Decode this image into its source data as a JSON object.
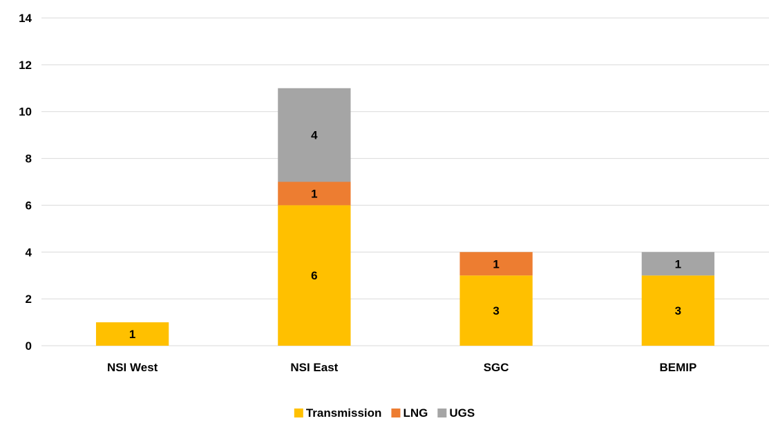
{
  "chart_data": {
    "type": "bar",
    "stacked": true,
    "categories": [
      "NSI West",
      "NSI East",
      "SGC",
      "BEMIP"
    ],
    "series": [
      {
        "name": "Transmission",
        "color": "#FFC000",
        "values": [
          1,
          6,
          3,
          3
        ]
      },
      {
        "name": "LNG",
        "color": "#ED7D31",
        "values": [
          0,
          1,
          1,
          0
        ]
      },
      {
        "name": "UGS",
        "color": "#A5A5A5",
        "values": [
          0,
          4,
          0,
          1
        ]
      }
    ],
    "ylim": [
      0,
      14
    ],
    "yticks": [
      0,
      2,
      4,
      6,
      8,
      10,
      12,
      14
    ],
    "grid": true,
    "legend_position": "bottom",
    "data_labels": true,
    "gridline_color": "#D9D9D9"
  }
}
